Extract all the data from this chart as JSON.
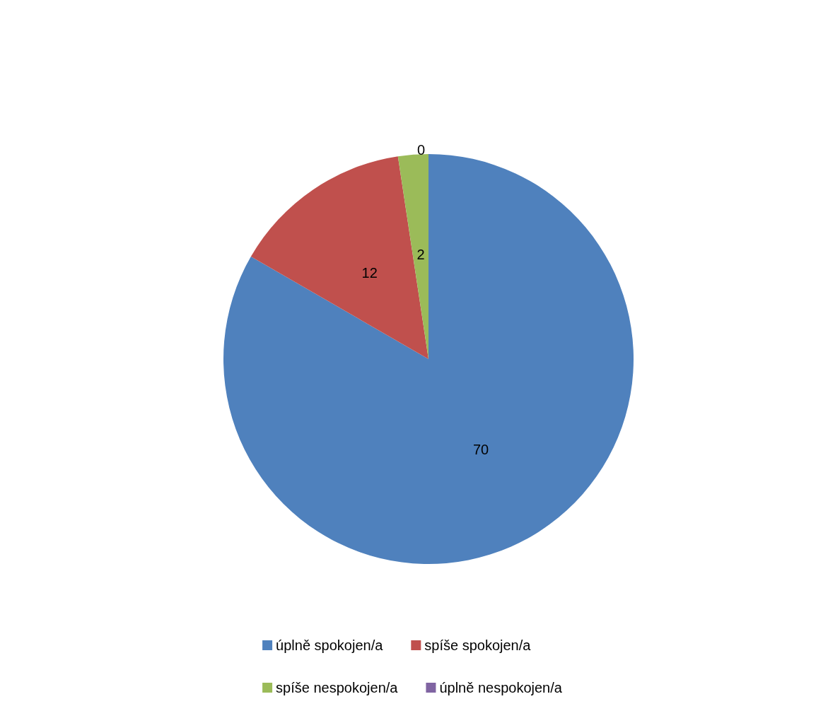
{
  "chart_data": {
    "type": "pie",
    "categories": [
      "úplně spokojen/a",
      "spíše spokojen/a",
      "spíše nespokojen/a",
      "úplně nespokojen/a"
    ],
    "values": [
      70,
      12,
      2,
      0
    ],
    "value_labels": [
      "70",
      "12",
      "2",
      "0"
    ],
    "colors": [
      "#4f81bd",
      "#c0504d",
      "#9bbb59",
      "#8064a2"
    ],
    "legend": "bottom"
  }
}
